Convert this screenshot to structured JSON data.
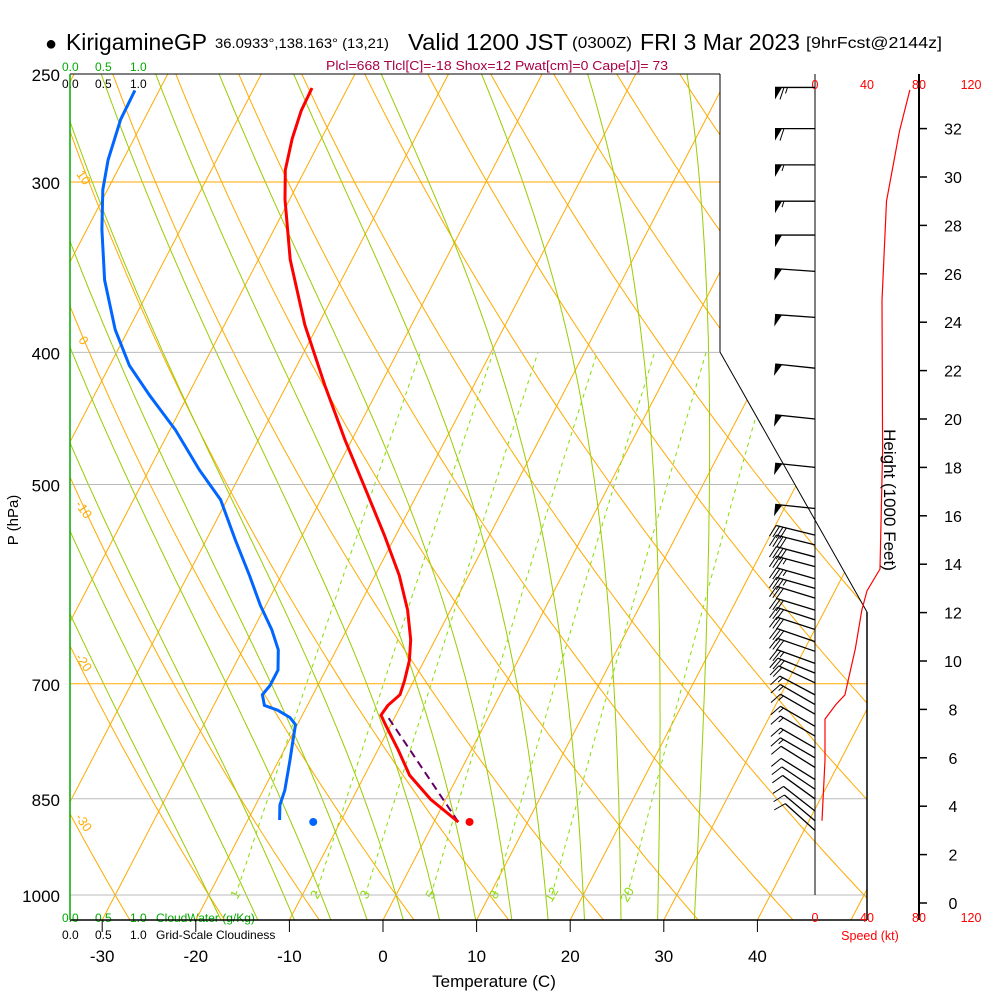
{
  "header": {
    "station_marker": "●",
    "station": "KirigamineGP",
    "coords": "36.0933°,138.163° (13,21)",
    "valid": "Valid 1200 JST",
    "utc": "(0300Z)",
    "date": "FRI 3 Mar 2023",
    "forecast": "[9hrFcst@2144z]"
  },
  "stats": "Plcl=668 Tlcl[C]=-18 Shox=12 Pwat[cm]=0 Cape[J]= 73",
  "cloud_scales": {
    "cloudwater_ticks": [
      "0.0",
      "0.5",
      "1.0"
    ],
    "cloudiness_ticks": [
      "0.0",
      "0.5",
      "1.0"
    ],
    "cloudwater_label": "CloudWater (g/Kg)",
    "cloudiness_label": "Grid-Scale Cloudiness"
  },
  "colors": {
    "temperature": "#ff0000",
    "dewpoint": "#0066ff",
    "parcel": "#660066",
    "isotherm": "#ffaa00",
    "moist_adiabat": "#99cc00",
    "mixing_ratio": "#88dd00",
    "stats": "#aa0044",
    "cloudwater": "#00aa00",
    "speed": "#ff0000"
  },
  "chart_data": {
    "type": "skew-t",
    "title": "KirigamineGP Valid 1200 JST (0300Z) FRI 3 Mar 2023",
    "xlabel": "Temperature (C)",
    "ylabel": "P (hPa)",
    "pressure_ticks": [
      "250",
      "300",
      "400",
      "500",
      "700",
      "850",
      "1000"
    ],
    "pressure_values": [
      250,
      300,
      400,
      500,
      700,
      850,
      1000
    ],
    "temperature_ticks": [
      "-30",
      "-20",
      "-10",
      "0",
      "10",
      "20",
      "30",
      "40"
    ],
    "temperature_values": [
      -30,
      -20,
      -10,
      0,
      10,
      20,
      30,
      40
    ],
    "ylim_hpa": [
      1044,
      250
    ],
    "temperature_profile": [
      {
        "p": 884,
        "t": 2.6
      },
      {
        "p": 851,
        "t": -1.6
      },
      {
        "p": 817,
        "t": -5.2
      },
      {
        "p": 783,
        "t": -7.8
      },
      {
        "p": 750,
        "t": -10.6
      },
      {
        "p": 738,
        "t": -11.6
      },
      {
        "p": 726,
        "t": -11.4
      },
      {
        "p": 713,
        "t": -10.7
      },
      {
        "p": 696,
        "t": -11.0
      },
      {
        "p": 673,
        "t": -11.6
      },
      {
        "p": 650,
        "t": -12.6
      },
      {
        "p": 618,
        "t": -14.6
      },
      {
        "p": 583,
        "t": -17.4
      },
      {
        "p": 545,
        "t": -21.2
      },
      {
        "p": 504,
        "t": -25.8
      },
      {
        "p": 464,
        "t": -30.7
      },
      {
        "p": 423,
        "t": -35.9
      },
      {
        "p": 382,
        "t": -41.4
      },
      {
        "p": 342,
        "t": -46.6
      },
      {
        "p": 309,
        "t": -50.5
      },
      {
        "p": 294,
        "t": -52.1
      },
      {
        "p": 279,
        "t": -53.1
      },
      {
        "p": 266,
        "t": -53.7
      },
      {
        "p": 256,
        "t": -53.8
      }
    ],
    "dewpoint_profile": [
      {
        "p": 881,
        "t": -16.6
      },
      {
        "p": 859,
        "t": -17.4
      },
      {
        "p": 838,
        "t": -17.7
      },
      {
        "p": 797,
        "t": -18.8
      },
      {
        "p": 770,
        "t": -19.6
      },
      {
        "p": 750,
        "t": -20.2
      },
      {
        "p": 741,
        "t": -21.2
      },
      {
        "p": 732,
        "t": -22.9
      },
      {
        "p": 726,
        "t": -24.6
      },
      {
        "p": 713,
        "t": -25.4
      },
      {
        "p": 702,
        "t": -25.1
      },
      {
        "p": 684,
        "t": -25.1
      },
      {
        "p": 661,
        "t": -26.2
      },
      {
        "p": 639,
        "t": -28.0
      },
      {
        "p": 613,
        "t": -30.6
      },
      {
        "p": 583,
        "t": -33.4
      },
      {
        "p": 549,
        "t": -36.9
      },
      {
        "p": 513,
        "t": -40.7
      },
      {
        "p": 488,
        "t": -44.6
      },
      {
        "p": 456,
        "t": -49.4
      },
      {
        "p": 430,
        "t": -54.1
      },
      {
        "p": 409,
        "t": -57.9
      },
      {
        "p": 385,
        "t": -61.4
      },
      {
        "p": 354,
        "t": -65.3
      },
      {
        "p": 325,
        "t": -68.4
      },
      {
        "p": 304,
        "t": -70.5
      },
      {
        "p": 289,
        "t": -71.6
      },
      {
        "p": 270,
        "t": -72.5
      },
      {
        "p": 257,
        "t": -72.6
      }
    ],
    "parcel_path": [
      {
        "p": 884,
        "t": 2.6
      },
      {
        "p": 741,
        "t": -10.7
      }
    ],
    "surface_temperature": {
      "p": 884,
      "t": 3.8
    },
    "surface_dewpoint": {
      "p": 884,
      "t": -12.9
    },
    "isotherm_labels": [
      {
        "t": 0,
        "text": "0"
      },
      {
        "t": 10,
        "text": "10"
      },
      {
        "t": 20,
        "text": "20"
      },
      {
        "t": 30,
        "text": "30"
      }
    ],
    "dry_adiabat_labels": [
      "10",
      "0",
      "-10",
      "-20",
      "-30"
    ],
    "mixing_ratio_labels": [
      "1",
      "2",
      "3",
      "5",
      "8",
      "12",
      "20"
    ],
    "mixing_ratio_values": [
      1,
      2,
      3,
      5,
      8,
      12,
      20
    ],
    "moist_adiabat_values": [
      -20,
      -16,
      -12,
      -8,
      -4,
      0,
      4,
      8,
      12,
      16,
      20,
      24,
      28,
      32
    ],
    "height_axis": {
      "label": "Height (1000 Feet)",
      "ticks": [
        "0",
        "2",
        "4",
        "6",
        "8",
        "10",
        "12",
        "14",
        "16",
        "18",
        "20",
        "22",
        "24",
        "26",
        "28",
        "30",
        "32"
      ],
      "values": [
        0,
        2,
        4,
        6,
        8,
        10,
        12,
        14,
        16,
        18,
        20,
        22,
        24,
        26,
        28,
        30,
        32
      ]
    },
    "speed_axis": {
      "label": "Speed (kt)",
      "ticks": [
        "0",
        "40",
        "80",
        "120"
      ],
      "values": [
        0,
        40,
        80,
        120
      ]
    },
    "wind_speed_profile": [
      {
        "h": 3.4,
        "s": 5.4
      },
      {
        "h": 5.9,
        "s": 7.7
      },
      {
        "h": 7.6,
        "s": 7.7
      },
      {
        "h": 8.2,
        "s": 16
      },
      {
        "h": 8.6,
        "s": 23
      },
      {
        "h": 10.5,
        "s": 31
      },
      {
        "h": 12.1,
        "s": 36
      },
      {
        "h": 12.9,
        "s": 40
      },
      {
        "h": 13.8,
        "s": 50
      },
      {
        "h": 18.7,
        "s": 52
      },
      {
        "h": 24.9,
        "s": 51.5
      },
      {
        "h": 29.0,
        "s": 55
      },
      {
        "h": 31.9,
        "s": 65
      },
      {
        "h": 33.6,
        "s": 73
      }
    ],
    "wind_barbs": [
      {
        "h": 33.7,
        "s": 65,
        "d": 270
      },
      {
        "h": 32.0,
        "s": 60,
        "d": 270
      },
      {
        "h": 30.5,
        "s": 55,
        "d": 270
      },
      {
        "h": 29.0,
        "s": 55,
        "d": 270
      },
      {
        "h": 27.6,
        "s": 50,
        "d": 270
      },
      {
        "h": 26.1,
        "s": 50,
        "d": 274
      },
      {
        "h": 24.2,
        "s": 50,
        "d": 274
      },
      {
        "h": 22.1,
        "s": 50,
        "d": 276
      },
      {
        "h": 20.0,
        "s": 50,
        "d": 276
      },
      {
        "h": 18.0,
        "s": 50,
        "d": 276
      },
      {
        "h": 16.3,
        "s": 50,
        "d": 276
      },
      {
        "h": 15.2,
        "s": 40,
        "d": 284
      },
      {
        "h": 14.8,
        "s": 40,
        "d": 284
      },
      {
        "h": 14.3,
        "s": 40,
        "d": 285
      },
      {
        "h": 13.9,
        "s": 35,
        "d": 285
      },
      {
        "h": 13.4,
        "s": 35,
        "d": 286
      },
      {
        "h": 13.0,
        "s": 35,
        "d": 286
      },
      {
        "h": 12.6,
        "s": 30,
        "d": 287
      },
      {
        "h": 12.1,
        "s": 30,
        "d": 287
      },
      {
        "h": 11.7,
        "s": 30,
        "d": 288
      },
      {
        "h": 11.3,
        "s": 30,
        "d": 288
      },
      {
        "h": 10.8,
        "s": 30,
        "d": 289
      },
      {
        "h": 10.4,
        "s": 30,
        "d": 289
      },
      {
        "h": 9.9,
        "s": 25,
        "d": 290
      },
      {
        "h": 9.5,
        "s": 25,
        "d": 292
      },
      {
        "h": 9.1,
        "s": 20,
        "d": 295
      },
      {
        "h": 8.6,
        "s": 15,
        "d": 298
      },
      {
        "h": 8.2,
        "s": 15,
        "d": 300
      },
      {
        "h": 7.8,
        "s": 15,
        "d": 300
      },
      {
        "h": 7.3,
        "s": 15,
        "d": 300
      },
      {
        "h": 6.9,
        "s": 15,
        "d": 300
      },
      {
        "h": 6.4,
        "s": 15,
        "d": 300
      },
      {
        "h": 6.0,
        "s": 15,
        "d": 300
      },
      {
        "h": 5.6,
        "s": 10,
        "d": 302
      },
      {
        "h": 5.1,
        "s": 10,
        "d": 302
      },
      {
        "h": 4.7,
        "s": 10,
        "d": 304
      },
      {
        "h": 4.3,
        "s": 10,
        "d": 306
      },
      {
        "h": 3.8,
        "s": 10,
        "d": 308
      },
      {
        "h": 3.4,
        "s": 10,
        "d": 310
      },
      {
        "h": 3.0,
        "s": 10,
        "d": 312
      }
    ]
  }
}
